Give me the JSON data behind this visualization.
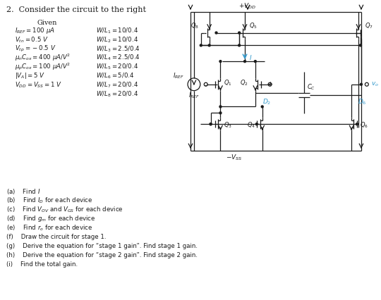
{
  "title": "2.  Consider the circuit to the right",
  "given_header": "Given",
  "bg_color": "#ffffff",
  "text_color": "#1a1a1a",
  "cc": "#1a1a1a",
  "blue": "#3399cc",
  "given_left": [
    "$I_{REF} = 100\\ \\mu A$",
    "$V_{tn} = 0.5\\ V$",
    "$V_{tp} = -0.5\\ V$",
    "$\\mu_n C_{ox} = 400\\ \\mu A/V^2$",
    "$\\mu_p C_{ox} = 100\\ \\mu A/V^2$",
    "$|V_A| = 5\\ V$",
    "$V_{DD} = V_{SS} = 1\\ V$"
  ],
  "given_right": [
    "$W/L_1 = 10/0.4$",
    "$W/L_2 = 10/0.4$",
    "$W/L_3 = 2.5/0.4$",
    "$W/L_4 = 2.5/0.4$",
    "$W/L_5 = 20/0.4$",
    "$W/L_6 = 5/0.4$",
    "$W/L_7 = 20/0.4$",
    "$W/L_8 = 20/0.4$"
  ],
  "questions": [
    "(a)\\tFind $I$",
    "(b)\\tFind $I_D$ for each device",
    "(c)\\tFind $V_{OV}$ and $V_{GS}$ for each device",
    "(d)\\tFind $g_m$ for each device",
    "(e)\\tFind $r_o$ for each device",
    "(f)\\tDraw the circuit for stage 1.",
    "(g)\\tDerive the equation for “stage 1 gain”. Find stage 1 gain.",
    "(h)\\tDerive the equation for “stage 2 gain”. Find stage 2 gain.",
    "(i)\\tFind the total gain."
  ]
}
